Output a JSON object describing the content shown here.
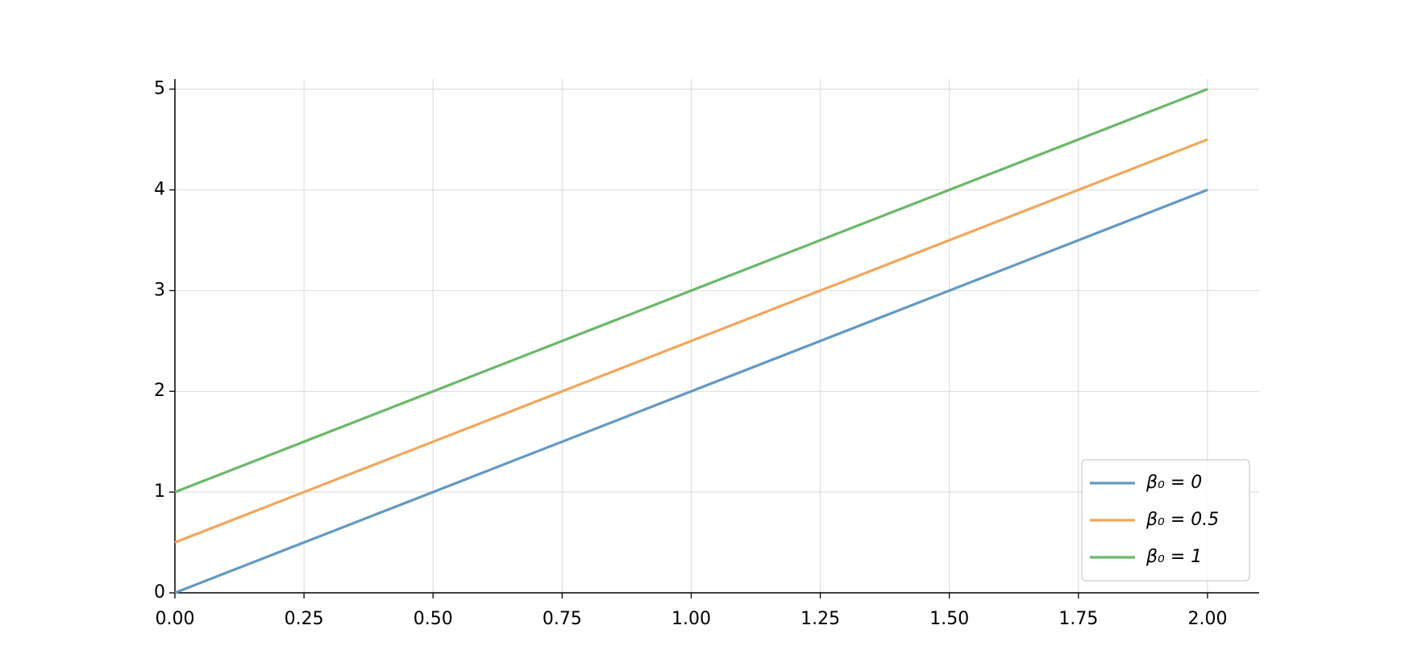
{
  "chart_data": {
    "type": "line",
    "x": [
      0,
      2
    ],
    "series": [
      {
        "name": "β₀ = 0",
        "color": "#6299c3",
        "values": [
          0,
          4
        ]
      },
      {
        "name": "β₀ = 0.5",
        "color": "#f2a65a",
        "values": [
          0.5,
          4.5
        ]
      },
      {
        "name": "β₀ = 1",
        "color": "#6ab86a",
        "values": [
          1,
          5
        ]
      }
    ],
    "xlim": [
      0,
      2.1
    ],
    "ylim": [
      0,
      5.1
    ],
    "xticks": [
      {
        "value": 0,
        "label": "0.00"
      },
      {
        "value": 0.25,
        "label": "0.25"
      },
      {
        "value": 0.5,
        "label": "0.50"
      },
      {
        "value": 0.75,
        "label": "0.75"
      },
      {
        "value": 1,
        "label": "1.00"
      },
      {
        "value": 1.25,
        "label": "1.25"
      },
      {
        "value": 1.5,
        "label": "1.50"
      },
      {
        "value": 1.75,
        "label": "1.75"
      },
      {
        "value": 2,
        "label": "2.00"
      }
    ],
    "yticks": [
      0,
      1,
      2,
      3,
      4,
      5
    ],
    "grid": true,
    "legend": "lower right"
  }
}
